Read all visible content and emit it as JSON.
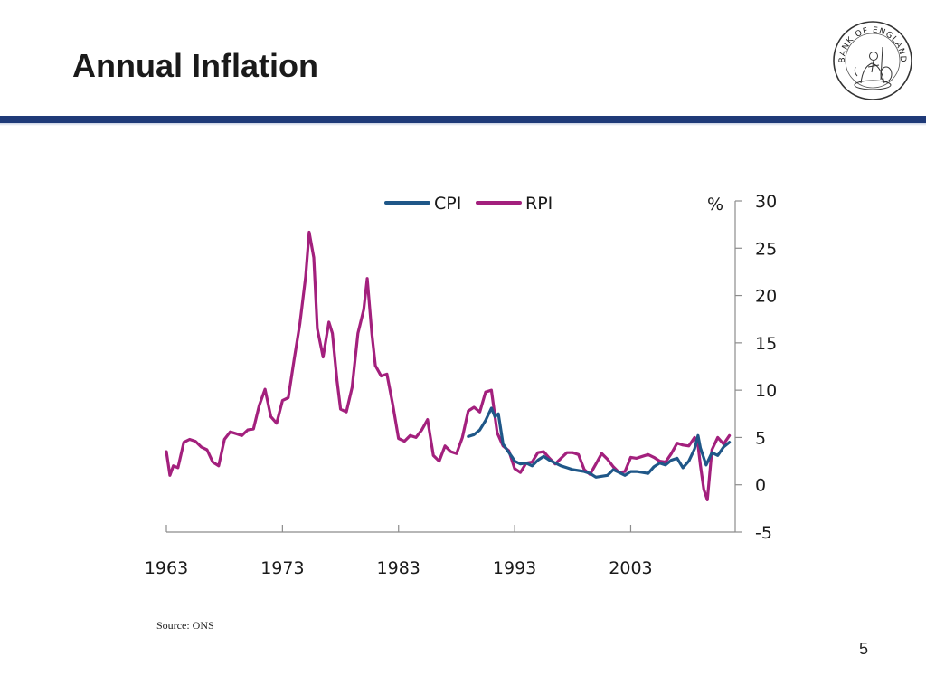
{
  "slide": {
    "title": "Annual Inflation",
    "source": "Source: ONS",
    "page_number": "5",
    "logo_text": "BANK OF ENGLAND"
  },
  "colors": {
    "cpi": "#1f5788",
    "rpi": "#a3207d",
    "header_rule": "#1f3a78"
  },
  "chart_data": {
    "type": "line",
    "title": "",
    "xlabel": "",
    "ylabel": "%",
    "unit_label": "%",
    "ylim": [
      -5,
      30
    ],
    "yticks": [
      30,
      25,
      20,
      15,
      10,
      5,
      0,
      -5
    ],
    "xlim": [
      1963,
      2012
    ],
    "xticks": [
      1963,
      1973,
      1983,
      1993,
      2003
    ],
    "y_axis_side": "right",
    "legend_position": "top-center",
    "series": [
      {
        "name": "CPI",
        "color": "#1f5788",
        "x": [
          1989.0,
          1989.5,
          1990.0,
          1990.5,
          1991.0,
          1991.3,
          1991.6,
          1992.0,
          1992.4,
          1992.8,
          1993.0,
          1993.5,
          1994.0,
          1994.5,
          1995.0,
          1995.5,
          1996.0,
          1996.5,
          1997.0,
          1997.5,
          1998.0,
          1998.5,
          1999.0,
          1999.5,
          2000.0,
          2000.5,
          2001.0,
          2001.5,
          2002.0,
          2002.5,
          2003.0,
          2003.5,
          2004.0,
          2004.5,
          2005.0,
          2005.5,
          2006.0,
          2006.5,
          2007.0,
          2007.5,
          2008.0,
          2008.5,
          2008.8,
          2009.0,
          2009.5,
          2010.0,
          2010.5,
          2011.0,
          2011.5
        ],
        "values": [
          5.1,
          5.3,
          5.8,
          6.8,
          8.1,
          7.2,
          7.5,
          4.3,
          3.6,
          2.9,
          2.5,
          2.2,
          2.3,
          2.0,
          2.6,
          3.0,
          2.6,
          2.3,
          2.0,
          1.8,
          1.6,
          1.5,
          1.4,
          1.2,
          0.8,
          0.9,
          1.0,
          1.6,
          1.3,
          1.0,
          1.4,
          1.4,
          1.3,
          1.2,
          1.9,
          2.3,
          2.1,
          2.6,
          2.8,
          1.8,
          2.5,
          3.8,
          5.2,
          3.9,
          2.1,
          3.4,
          3.1,
          4.0,
          4.5
        ]
      },
      {
        "name": "RPI",
        "color": "#a3207d",
        "x": [
          1963.0,
          1963.3,
          1963.6,
          1964.0,
          1964.5,
          1965.0,
          1965.5,
          1966.0,
          1966.5,
          1967.0,
          1967.5,
          1968.0,
          1968.5,
          1969.0,
          1969.5,
          1970.0,
          1970.5,
          1971.0,
          1971.5,
          1972.0,
          1972.5,
          1973.0,
          1973.5,
          1974.0,
          1974.5,
          1975.0,
          1975.3,
          1975.7,
          1976.0,
          1976.5,
          1977.0,
          1977.3,
          1977.7,
          1978.0,
          1978.5,
          1979.0,
          1979.5,
          1980.0,
          1980.3,
          1980.7,
          1981.0,
          1981.5,
          1982.0,
          1982.5,
          1983.0,
          1983.5,
          1984.0,
          1984.5,
          1985.0,
          1985.5,
          1986.0,
          1986.5,
          1987.0,
          1987.5,
          1988.0,
          1988.5,
          1989.0,
          1989.5,
          1990.0,
          1990.5,
          1991.0,
          1991.5,
          1992.0,
          1992.5,
          1993.0,
          1993.5,
          1994.0,
          1994.5,
          1995.0,
          1995.5,
          1996.0,
          1996.5,
          1997.0,
          1997.5,
          1998.0,
          1998.5,
          1999.0,
          1999.5,
          2000.0,
          2000.5,
          2001.0,
          2001.5,
          2002.0,
          2002.5,
          2003.0,
          2003.5,
          2004.0,
          2004.5,
          2005.0,
          2005.5,
          2006.0,
          2006.5,
          2007.0,
          2007.5,
          2008.0,
          2008.5,
          2008.8,
          2009.0,
          2009.3,
          2009.6,
          2010.0,
          2010.5,
          2011.0,
          2011.5
        ],
        "values": [
          3.5,
          1.0,
          2.0,
          1.8,
          4.5,
          4.8,
          4.6,
          4.0,
          3.7,
          2.4,
          2.0,
          4.8,
          5.6,
          5.4,
          5.2,
          5.8,
          5.9,
          8.4,
          10.1,
          7.2,
          6.5,
          8.9,
          9.2,
          13.2,
          17.0,
          22.0,
          26.7,
          24.0,
          16.5,
          13.5,
          17.2,
          16.0,
          11.0,
          8.0,
          7.7,
          10.3,
          16.0,
          18.5,
          21.8,
          16.0,
          12.6,
          11.5,
          11.7,
          8.5,
          4.9,
          4.6,
          5.2,
          5.0,
          5.8,
          6.9,
          3.1,
          2.5,
          4.1,
          3.5,
          3.3,
          5.0,
          7.8,
          8.2,
          7.7,
          9.8,
          10.0,
          5.5,
          4.1,
          3.6,
          1.7,
          1.3,
          2.3,
          2.4,
          3.4,
          3.5,
          2.8,
          2.2,
          2.8,
          3.4,
          3.4,
          3.2,
          1.6,
          1.1,
          2.2,
          3.3,
          2.7,
          1.9,
          1.3,
          1.4,
          2.9,
          2.8,
          3.0,
          3.2,
          2.9,
          2.5,
          2.4,
          3.3,
          4.4,
          4.2,
          4.1,
          5.0,
          4.2,
          2.1,
          -0.5,
          -1.6,
          3.7,
          5.0,
          4.3,
          5.2
        ]
      }
    ]
  }
}
